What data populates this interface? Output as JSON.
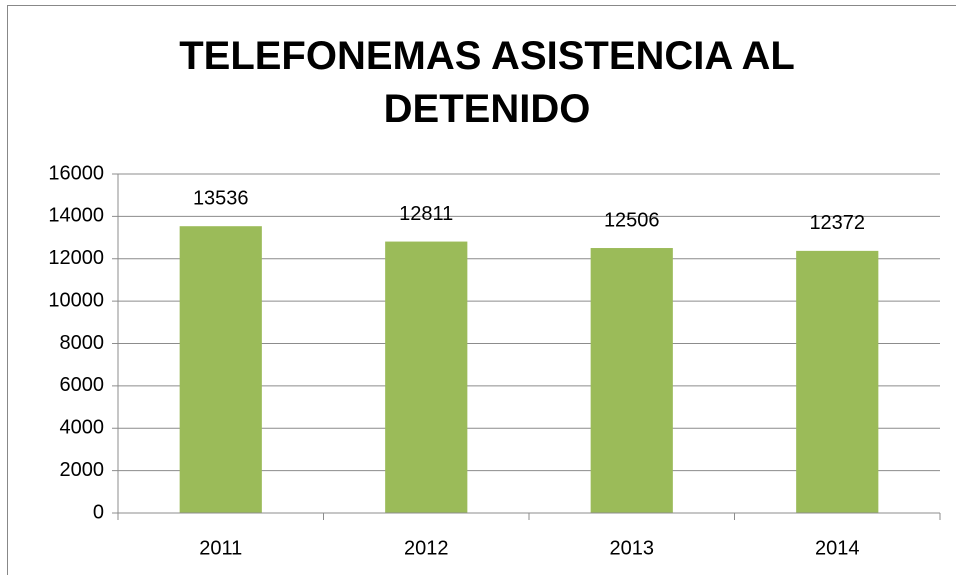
{
  "chart_data": {
    "type": "bar",
    "title": "TELEFONEMAS ASISTENCIA AL DETENIDO",
    "categories": [
      "2011",
      "2012",
      "2013",
      "2014"
    ],
    "values": [
      13536,
      12811,
      12506,
      12372
    ],
    "color": "#9bbb59",
    "ylim": [
      0,
      16000
    ],
    "yticks": [
      0,
      2000,
      4000,
      6000,
      8000,
      10000,
      12000,
      14000,
      16000
    ],
    "grid": true
  }
}
